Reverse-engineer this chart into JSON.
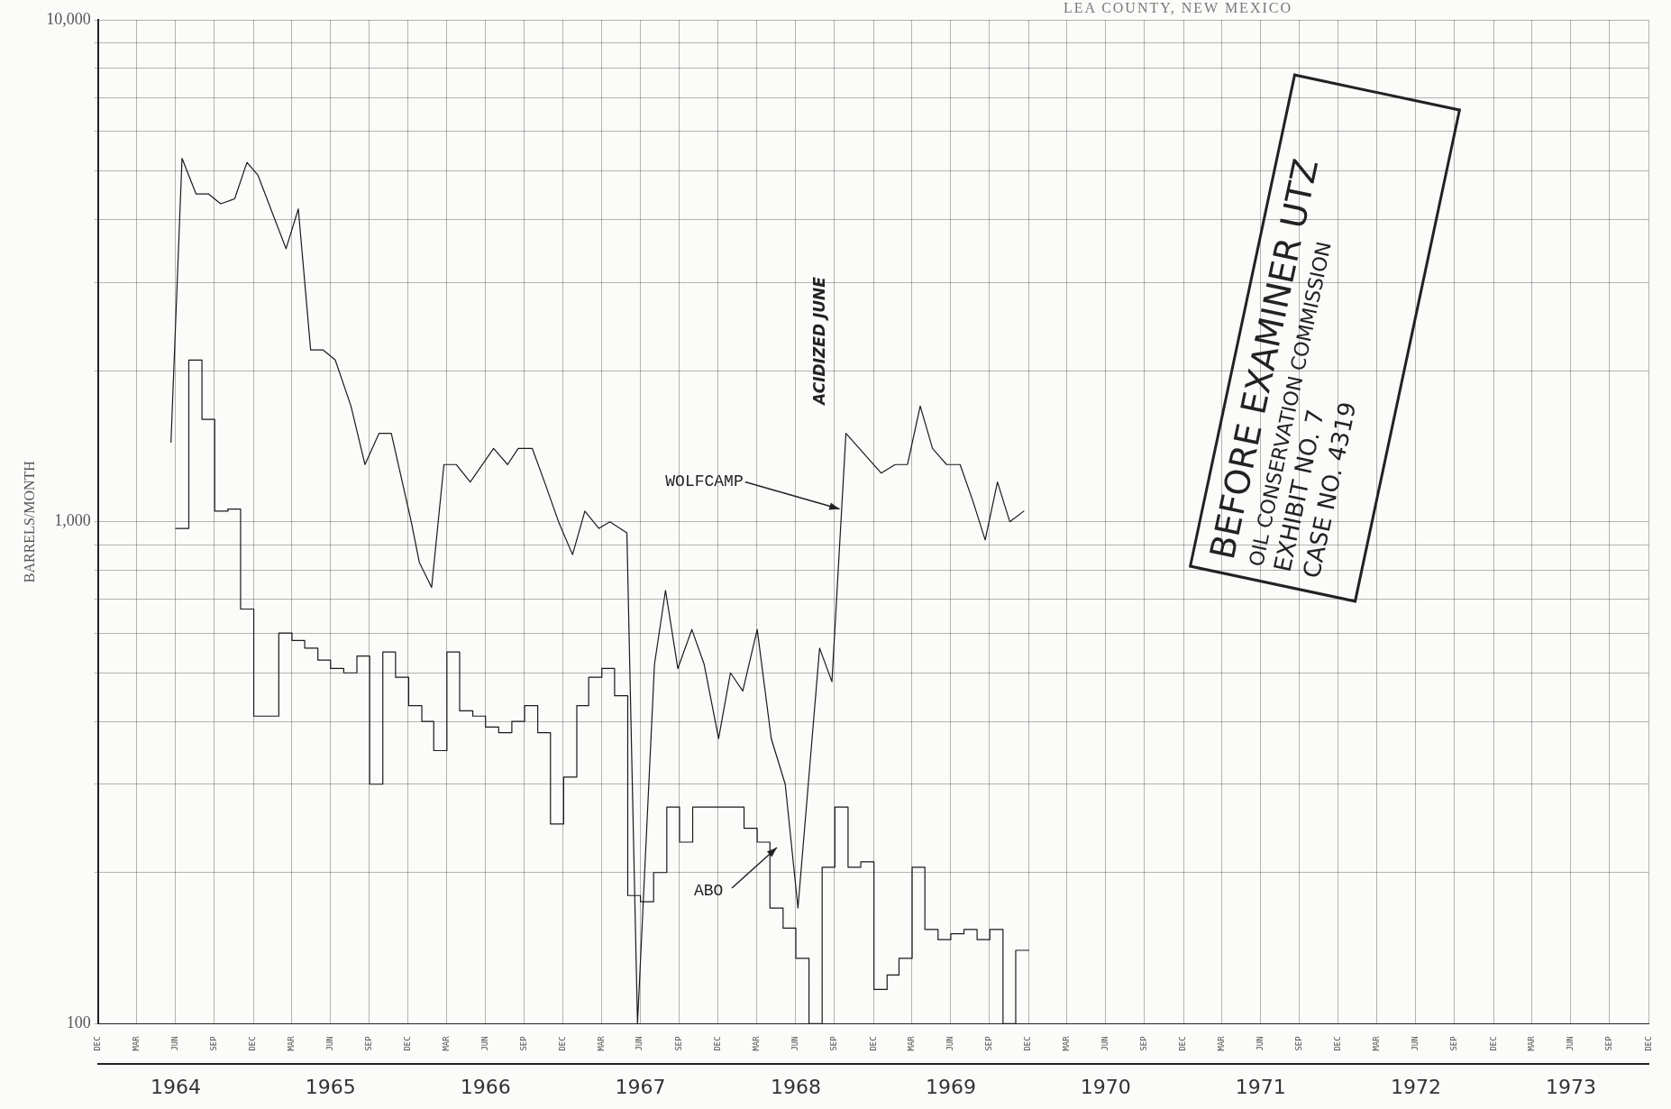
{
  "chart_data": {
    "type": "line",
    "title": "LEA COUNTY, NEW MEXICO",
    "ylabel": "BARRELS/MONTH",
    "log": true,
    "grid": true,
    "legend": false,
    "marker": "none",
    "ylim": [
      100,
      10000
    ],
    "yticks": [
      100,
      {
        "value": 200,
        "label": null
      },
      {
        "value": 300,
        "label": null
      },
      {
        "value": 400,
        "label": null
      },
      {
        "value": 500,
        "label": null
      },
      {
        "value": 600,
        "label": null
      },
      {
        "value": 700,
        "label": null
      },
      {
        "value": 800,
        "label": null
      },
      {
        "value": 900,
        "label": null
      },
      {
        "value": 1000,
        "label": "1,000"
      },
      {
        "value": 2000,
        "label": null
      },
      {
        "value": 3000,
        "label": null
      },
      {
        "value": 4000,
        "label": null
      },
      {
        "value": 5000,
        "label": null
      },
      {
        "value": 6000,
        "label": null
      },
      {
        "value": 7000,
        "label": null
      },
      {
        "value": 8000,
        "label": null
      },
      {
        "value": 9000,
        "label": null
      },
      {
        "value": 10000,
        "label": "10,000"
      }
    ],
    "xlim": [
      "1963-12-31",
      "1973-12-31"
    ],
    "xticks": [
      {
        "value": "1963-12-31",
        "label": "DEC"
      },
      {
        "value": "1964-03-31",
        "label": "MAR"
      },
      {
        "value": "1964-06-30",
        "label": "JUN"
      },
      {
        "value": "1964-09-30",
        "label": "SEP"
      },
      {
        "value": "1964-12-31",
        "label": "DEC"
      },
      {
        "value": "1965-03-31",
        "label": "MAR"
      },
      {
        "value": "1965-06-30",
        "label": "JUN"
      },
      {
        "value": "1965-09-30",
        "label": "SEP"
      },
      {
        "value": "1965-12-31",
        "label": "DEC"
      },
      {
        "value": "1966-03-31",
        "label": "MAR"
      },
      {
        "value": "1966-06-30",
        "label": "JUN"
      },
      {
        "value": "1966-09-30",
        "label": "SEP"
      },
      {
        "value": "1966-12-31",
        "label": "DEC"
      },
      {
        "value": "1967-03-31",
        "label": "MAR"
      },
      {
        "value": "1967-06-30",
        "label": "JUN"
      },
      {
        "value": "1967-09-30",
        "label": "SEP"
      },
      {
        "value": "1967-12-31",
        "label": "DEC"
      },
      {
        "value": "1968-03-31",
        "label": "MAR"
      },
      {
        "value": "1968-06-30",
        "label": "JUN"
      },
      {
        "value": "1968-09-30",
        "label": "SEP"
      },
      {
        "value": "1968-12-31",
        "label": "DEC"
      },
      {
        "value": "1969-03-31",
        "label": "MAR"
      },
      {
        "value": "1969-06-30",
        "label": "JUN"
      },
      {
        "value": "1969-09-30",
        "label": "SEP"
      },
      {
        "value": "1969-12-31",
        "label": "DEC"
      },
      {
        "value": "1970-03-31",
        "label": "MAR"
      },
      {
        "value": "1970-06-30",
        "label": "JUN"
      },
      {
        "value": "1970-09-30",
        "label": "SEP"
      },
      {
        "value": "1970-12-31",
        "label": "DEC"
      },
      {
        "value": "1971-03-31",
        "label": "MAR"
      },
      {
        "value": "1971-06-30",
        "label": "JUN"
      },
      {
        "value": "1971-09-30",
        "label": "SEP"
      },
      {
        "value": "1971-12-31",
        "label": "DEC"
      },
      {
        "value": "1972-03-31",
        "label": "MAR"
      },
      {
        "value": "1972-06-30",
        "label": "JUN"
      },
      {
        "value": "1972-09-30",
        "label": "SEP"
      },
      {
        "value": "1972-12-31",
        "label": "DEC"
      },
      {
        "value": "1973-03-31",
        "label": "MAR"
      },
      {
        "value": "1973-06-30",
        "label": "JUN"
      },
      {
        "value": "1973-09-30",
        "label": "SEP"
      },
      {
        "value": "1973-12-31",
        "label": "DEC"
      }
    ],
    "x2lim": [
      "1963-12-31",
      "1973-12-31"
    ],
    "x2ticks": [
      {
        "value": "1964-07",
        "label": "1964"
      },
      {
        "value": "1965-07",
        "label": "1965"
      },
      {
        "value": "1966-07",
        "label": "1966"
      },
      {
        "value": "1967-07",
        "label": "1967"
      },
      {
        "value": "1968-07",
        "label": "1968"
      },
      {
        "value": "1969-07",
        "label": "1969"
      },
      {
        "value": "1970-07",
        "label": "1970"
      },
      {
        "value": "1971-07",
        "label": "1971"
      },
      {
        "value": "1972-07",
        "label": "1972"
      },
      {
        "value": "1973-07",
        "label": "1973"
      }
    ],
    "series": [
      {
        "color": "#1a1a1a",
        "x": [
          "1964-06-20",
          "1964-07-16",
          "1964-08-18",
          "1964-09-16",
          "1964-10-15",
          "1964-11-17",
          "1964-12-16",
          "1965-01-11",
          "1965-03-18",
          "1965-04-16",
          "1965-05-15",
          "1965-06-13",
          "1965-07-12",
          "1965-08-18",
          "1965-09-20",
          "1965-10-23",
          "1965-11-21",
          "1966-01-07",
          "1966-01-26",
          "1966-02-24",
          "1966-03-25",
          "1966-04-23",
          "1966-05-26",
          "1966-07-20",
          "1966-08-22",
          "1966-09-16",
          "1966-10-19",
          "1966-11-17",
          "1966-12-20",
          "1967-01-22",
          "1967-02-20",
          "1967-03-25",
          "1967-04-20",
          "1967-05-30",
          "1967-06-24",
          "1967-08-03",
          "1967-08-29",
          "1967-09-27",
          "1967-10-30",
          "1967-11-28",
          "1968-01-01",
          "1968-01-29",
          "1968-02-27",
          "1968-04-01",
          "1968-05-04",
          "1968-06-06",
          "1968-07-06",
          "1968-08-26",
          "1968-09-24",
          "1968-10-27",
          "1969-01-18",
          "1969-02-20",
          "1969-03-21",
          "1969-04-20",
          "1969-05-19",
          "1969-06-21",
          "1969-07-23",
          "1969-08-22",
          "1969-09-20",
          "1969-10-19",
          "1969-11-17",
          "1969-12-20"
        ],
        "values": [
          1440,
          5300,
          4500,
          4500,
          4300,
          4400,
          5200,
          4900,
          3500,
          4200,
          2200,
          2200,
          2100,
          1700,
          1300,
          1500,
          1500,
          1000,
          830,
          740,
          1300,
          1300,
          1200,
          1400,
          1300,
          1400,
          1400,
          1200,
          1000,
          860,
          1050,
          970,
          1000,
          950,
          100,
          520,
          730,
          510,
          610,
          520,
          370,
          500,
          460,
          610,
          370,
          300,
          170,
          560,
          480,
          1500,
          1250,
          1300,
          1300,
          1700,
          1400,
          1300,
          1300,
          1100,
          920,
          1200,
          1000,
          1050
        ]
      },
      {
        "type": "step",
        "color": "#1a1a1a",
        "x": [
          "1964-07",
          "1964-08",
          "1964-09",
          "1964-10",
          "1964-11",
          "1964-12",
          "1965-01",
          "1965-02",
          "1965-03",
          "1965-04",
          "1965-05",
          "1965-06",
          "1965-07",
          "1965-08",
          "1965-09",
          "1965-10",
          "1965-11",
          "1965-12",
          "1966-01",
          "1966-02",
          "1966-03",
          "1966-04",
          "1966-05",
          "1966-06",
          "1966-07",
          "1966-08",
          "1966-09",
          "1966-10",
          "1966-11",
          "1966-12",
          "1967-01",
          "1967-02",
          "1967-03",
          "1967-04",
          "1967-05",
          "1967-06",
          "1967-07",
          "1967-08",
          "1967-09",
          "1967-10",
          "1967-11",
          "1967-12",
          "1968-01",
          "1968-02",
          "1968-03",
          "1968-04",
          "1968-05",
          "1968-06",
          "1968-07",
          "1968-08",
          "1968-09",
          "1968-10",
          "1968-11",
          "1968-12",
          "1969-01",
          "1969-02",
          "1969-03",
          "1969-04",
          "1969-05",
          "1969-06",
          "1969-07",
          "1969-08",
          "1969-09",
          "1969-10",
          "1969-11",
          "1969-12",
          "1970-01"
        ],
        "values": [
          970,
          2100,
          1600,
          1050,
          1060,
          670,
          410,
          410,
          600,
          580,
          560,
          530,
          510,
          500,
          540,
          300,
          550,
          490,
          430,
          400,
          350,
          550,
          420,
          410,
          390,
          380,
          400,
          430,
          380,
          250,
          310,
          430,
          490,
          510,
          450,
          180,
          175,
          200,
          270,
          230,
          270,
          270,
          270,
          270,
          245,
          230,
          170,
          155,
          135,
          100,
          205,
          270,
          205,
          210,
          117,
          125,
          135,
          205,
          154,
          147,
          151,
          154,
          147,
          154,
          100,
          140,
          140
        ]
      }
    ],
    "annotations": [
      {
        "text": "WOLFCAMP",
        "x": "1968-10-12",
        "y": 1060
      },
      "ABO",
      "ACIDIZED JUNE",
      "BEFORE EXAMINER UTZ",
      "OIL CONSERVATION COMMISSION",
      "EXHIBIT NO. 7",
      "CASE NO. 4319"
    ]
  }
}
